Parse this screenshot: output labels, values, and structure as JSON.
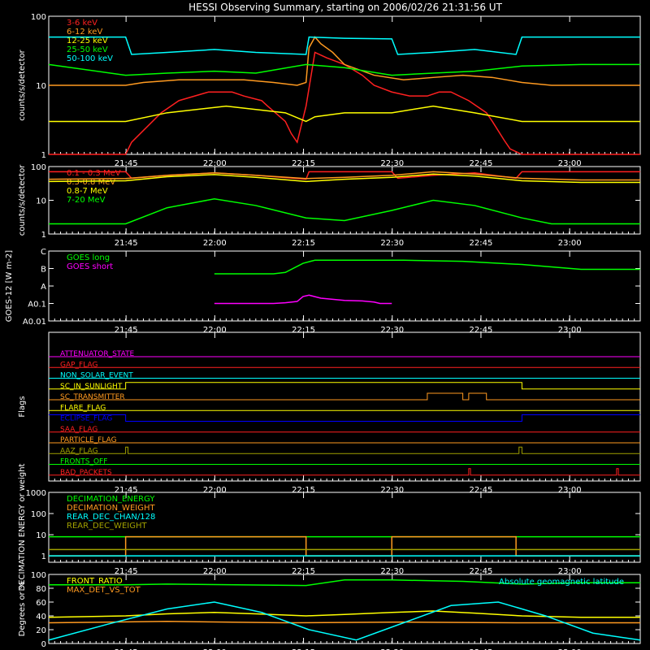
{
  "title": "HESSI Observing Summary, starting on 2006/02/26 21:31:56 UT",
  "time_ticks": [
    "21:45",
    "22:00",
    "22:15",
    "22:30",
    "22:45",
    "23:00"
  ],
  "time_tick_minutes": [
    13.07,
    28.07,
    43.07,
    58.07,
    73.07,
    88.07
  ],
  "time_range_minutes": [
    0,
    100
  ],
  "colors": {
    "background": "#000000",
    "axes": "#ffffff",
    "red": "#ff2020",
    "orange": "#ff9a20",
    "yellow": "#ffff00",
    "green": "#00ff00",
    "cyan": "#00ffff",
    "magenta": "#ff00ff",
    "blue": "#0000ff",
    "olive": "#a0a000"
  },
  "chart_data": [
    {
      "type": "line",
      "panel": "lightcurves",
      "ylabel": "counts/s/detector",
      "yscale": "log",
      "ylim": [
        1,
        100
      ],
      "yticks": [
        "1",
        "10",
        "100"
      ],
      "legend_placement": "top-left",
      "series": [
        {
          "name": "3-6 keV",
          "color": "red",
          "x": [
            0,
            13,
            14,
            19,
            22,
            27,
            31,
            33,
            36,
            37,
            40,
            41,
            42,
            43.5,
            45,
            47,
            50,
            53,
            55,
            58,
            61,
            64,
            66,
            68,
            71,
            74,
            75,
            77,
            78,
            80,
            80.5,
            85,
            90,
            95,
            100
          ],
          "y": [
            1,
            1,
            1.5,
            4,
            6,
            8,
            8,
            7,
            6,
            5,
            3,
            2,
            1.5,
            5,
            30,
            25,
            20,
            14,
            10,
            8,
            7,
            7,
            8,
            8,
            6,
            4,
            3,
            1.6,
            1.2,
            1,
            1,
            1,
            1,
            1,
            1
          ]
        },
        {
          "name": "6-12 keV",
          "color": "orange",
          "x": [
            0,
            13,
            16,
            22,
            28,
            33,
            38,
            42,
            43.5,
            44,
            45,
            46,
            48,
            50,
            55,
            60,
            65,
            70,
            75,
            80,
            85,
            90,
            95,
            100
          ],
          "y": [
            10,
            10,
            11,
            12,
            12,
            12,
            11,
            10,
            11,
            35,
            50,
            40,
            30,
            20,
            14,
            12,
            13,
            14,
            13,
            11,
            10,
            10,
            10,
            10
          ]
        },
        {
          "name": "12-25 keV",
          "color": "yellow",
          "x": [
            0,
            13,
            20,
            30,
            40,
            43.5,
            45,
            50,
            58,
            65,
            72,
            80,
            90,
            100
          ],
          "y": [
            3,
            3,
            4,
            5,
            4,
            3,
            3.5,
            4,
            4,
            5,
            4,
            3,
            3,
            3
          ]
        },
        {
          "name": "25-50 keV",
          "color": "green",
          "x": [
            0,
            13,
            20,
            28,
            35,
            43.5,
            50,
            58,
            65,
            72,
            80,
            90,
            100
          ],
          "y": [
            20,
            14,
            15,
            16,
            15,
            20,
            18,
            14,
            15,
            16,
            19,
            20,
            20
          ]
        },
        {
          "name": "50-100 keV",
          "color": "cyan",
          "x": [
            0,
            13,
            14,
            20,
            28,
            35,
            43.5,
            44,
            50,
            58,
            59,
            65,
            72,
            79,
            80,
            90,
            100
          ],
          "y": [
            50,
            50,
            28,
            30,
            33,
            30,
            28,
            50,
            48,
            47,
            28,
            30,
            33,
            28,
            50,
            50,
            50
          ]
        }
      ]
    },
    {
      "type": "line",
      "panel": "background",
      "ylabel": "counts/s/detector",
      "yscale": "log",
      "ylim": [
        1,
        100
      ],
      "yticks": [
        "1",
        "10",
        "100"
      ],
      "legend_placement": "top-left",
      "series": [
        {
          "name": "0.1 - 0.3 MeV",
          "color": "red",
          "x": [
            0,
            13,
            14,
            20,
            28,
            35,
            43.5,
            44,
            50,
            58,
            59,
            65,
            72,
            79,
            80,
            90,
            100
          ],
          "y": [
            70,
            70,
            45,
            55,
            65,
            55,
            42,
            70,
            70,
            70,
            45,
            55,
            65,
            45,
            70,
            70,
            70
          ]
        },
        {
          "name": "0.3-0.8 MeV",
          "color": "orange",
          "x": [
            0,
            13,
            20,
            28,
            35,
            43.5,
            50,
            58,
            65,
            72,
            80,
            90,
            100
          ],
          "y": [
            42,
            44,
            55,
            65,
            55,
            44,
            48,
            55,
            70,
            60,
            45,
            40,
            40
          ]
        },
        {
          "name": "0.8-7 MeV",
          "color": "yellow",
          "x": [
            0,
            13,
            20,
            28,
            35,
            43.5,
            50,
            58,
            65,
            72,
            80,
            90,
            100
          ],
          "y": [
            36,
            38,
            50,
            58,
            48,
            36,
            42,
            48,
            60,
            52,
            38,
            34,
            34
          ]
        },
        {
          "name": "7-20 MeV",
          "color": "green",
          "x": [
            0,
            13,
            20,
            28,
            35,
            43.5,
            50,
            58,
            65,
            72,
            80,
            85,
            90,
            100
          ],
          "y": [
            2,
            2,
            6,
            11,
            7,
            3,
            2.5,
            5,
            10,
            7,
            3,
            2,
            2,
            2
          ]
        }
      ]
    },
    {
      "type": "line",
      "panel": "goes",
      "ylabel": "GOES-12 [W m-2]",
      "yscale": "log",
      "ylim": [
        "A0.01",
        "C"
      ],
      "yticks": [
        "C",
        "B",
        "A",
        "A0.1",
        "A0.01"
      ],
      "series": [
        {
          "name": "GOES long",
          "color": "green",
          "x": [
            28,
            38,
            40,
            43,
            45,
            48,
            60,
            70,
            80,
            90,
            100
          ],
          "y": [
            "A5",
            "A5",
            "A6",
            "B2",
            "B3",
            "B3",
            "B3",
            "B2.6",
            "B1.7",
            "A9",
            "A9"
          ]
        },
        {
          "name": "GOES short",
          "color": "magenta",
          "x": [
            28,
            38,
            40,
            42,
            43,
            44,
            46,
            50,
            53,
            55,
            56,
            58
          ],
          "y": [
            "A0.1",
            "A0.1",
            "A0.11",
            "A0.13",
            "A0.25",
            "A0.3",
            "A0.2",
            "A0.15",
            "A0.14",
            "A0.12",
            "A0.1",
            "A0.1"
          ]
        }
      ]
    },
    {
      "type": "line",
      "panel": "flags",
      "ylabel": "Flags",
      "series": [
        {
          "name": "ATTENUATOR_STATE",
          "color": "magenta",
          "x": [
            0,
            100
          ],
          "y": [
            0,
            0
          ]
        },
        {
          "name": "GAP_FLAG",
          "color": "red",
          "x": [
            0,
            100
          ],
          "y": [
            0,
            0
          ]
        },
        {
          "name": "NON_SOLAR_EVENT",
          "color": "cyan",
          "x": [
            0,
            100
          ],
          "y": [
            0,
            0
          ]
        },
        {
          "name": "SC_IN_SUNLIGHT",
          "color": "yellow",
          "x": [
            0,
            13,
            13,
            80,
            80,
            100
          ],
          "y": [
            0,
            0,
            1,
            1,
            0,
            0
          ]
        },
        {
          "name": "SC_TRANSMITTER",
          "color": "orange",
          "x": [
            0,
            64,
            64,
            70,
            70,
            71,
            71,
            74,
            74,
            100
          ],
          "y": [
            0,
            0,
            1,
            1,
            0,
            0,
            1,
            1,
            0,
            0
          ]
        },
        {
          "name": "FLARE_FLAG",
          "color": "yellow",
          "x": [
            0,
            100
          ],
          "y": [
            0,
            0
          ]
        },
        {
          "name": "ECLIPSE_FLAG",
          "color": "blue",
          "x": [
            0,
            13,
            13,
            80,
            80,
            100
          ],
          "y": [
            1,
            1,
            0,
            0,
            1,
            1
          ]
        },
        {
          "name": "SAA_FLAG",
          "color": "red",
          "x": [
            0,
            100
          ],
          "y": [
            0,
            0
          ]
        },
        {
          "name": "PARTICLE_FLAG",
          "color": "orange",
          "x": [
            0,
            100
          ],
          "y": [
            0,
            0
          ]
        },
        {
          "name": "AAZ_FLAG",
          "color": "olive",
          "x": [
            0,
            13,
            13,
            13.4,
            13.4,
            79.5,
            79.5,
            80,
            80,
            100
          ],
          "y": [
            0,
            0,
            1,
            1,
            0,
            0,
            1,
            1,
            0,
            0
          ]
        },
        {
          "name": "FRONTS_OFF",
          "color": "green",
          "x": [
            0,
            100
          ],
          "y": [
            0,
            0
          ]
        },
        {
          "name": "BAD_PACKETS",
          "color": "red",
          "x": [
            0,
            71,
            71,
            71.3,
            71.3,
            96,
            96,
            96.3,
            96.3,
            100
          ],
          "y": [
            0,
            0,
            1,
            1,
            0,
            0,
            1,
            1,
            0,
            0
          ]
        }
      ]
    },
    {
      "type": "line",
      "panel": "decimation",
      "ylabel": "DECIMATION ENERGY or weight",
      "yscale": "log",
      "ylim": [
        0.5,
        1000
      ],
      "yticks": [
        "1",
        "10",
        "100",
        "1000"
      ],
      "legend_placement": "top-left",
      "series": [
        {
          "name": "DECIMATION_ENERGY",
          "color": "green",
          "x": [
            0,
            100
          ],
          "y": [
            8,
            8
          ]
        },
        {
          "name": "DECIMATION_WEIGHT",
          "color": "orange",
          "x": [
            0,
            13,
            13,
            43.5,
            43.5,
            58,
            58,
            79,
            79,
            100
          ],
          "y": [
            1,
            1,
            8,
            8,
            1,
            1,
            8,
            8,
            1,
            1
          ]
        },
        {
          "name": "REAR_DEC_CHAN/128",
          "color": "cyan",
          "x": [
            0,
            100
          ],
          "y": [
            1,
            1
          ]
        },
        {
          "name": "REAR_DEC_WEIGHT",
          "color": "olive",
          "x": [
            0,
            100
          ],
          "y": [
            2,
            2
          ]
        }
      ]
    },
    {
      "type": "line",
      "panel": "ratios",
      "ylabel": "Degrees or %",
      "ylim": [
        0,
        100
      ],
      "yticks": [
        "0",
        "20",
        "40",
        "60",
        "80",
        "100"
      ],
      "legend_placement": "top-left",
      "series": [
        {
          "name": "FRONT_RATIO",
          "color": "yellow",
          "x": [
            0,
            13,
            20,
            28,
            35,
            43.5,
            50,
            58,
            65,
            72,
            80,
            90,
            100
          ],
          "y": [
            38,
            40,
            43,
            45,
            43,
            40,
            42,
            45,
            47,
            44,
            40,
            38,
            38
          ]
        },
        {
          "name": "MAX_DET_VS_TOT",
          "color": "orange",
          "x": [
            0,
            20,
            40,
            60,
            80,
            100
          ],
          "y": [
            30,
            32,
            30,
            31,
            30,
            30
          ]
        },
        {
          "name": "",
          "color": "green",
          "x": [
            0,
            13,
            20,
            43.5,
            50,
            58,
            70,
            80,
            90,
            100
          ],
          "y": [
            85,
            85,
            86,
            84,
            92,
            92,
            90,
            86,
            88,
            88
          ]
        },
        {
          "name": "Absolute geomagnetic latitude",
          "color": "cyan",
          "x": [
            0,
            10,
            20,
            28,
            36,
            44,
            52,
            60,
            68,
            76,
            84,
            92,
            100
          ],
          "y": [
            5,
            28,
            50,
            60,
            45,
            20,
            5,
            30,
            55,
            60,
            40,
            15,
            5
          ]
        }
      ]
    }
  ]
}
